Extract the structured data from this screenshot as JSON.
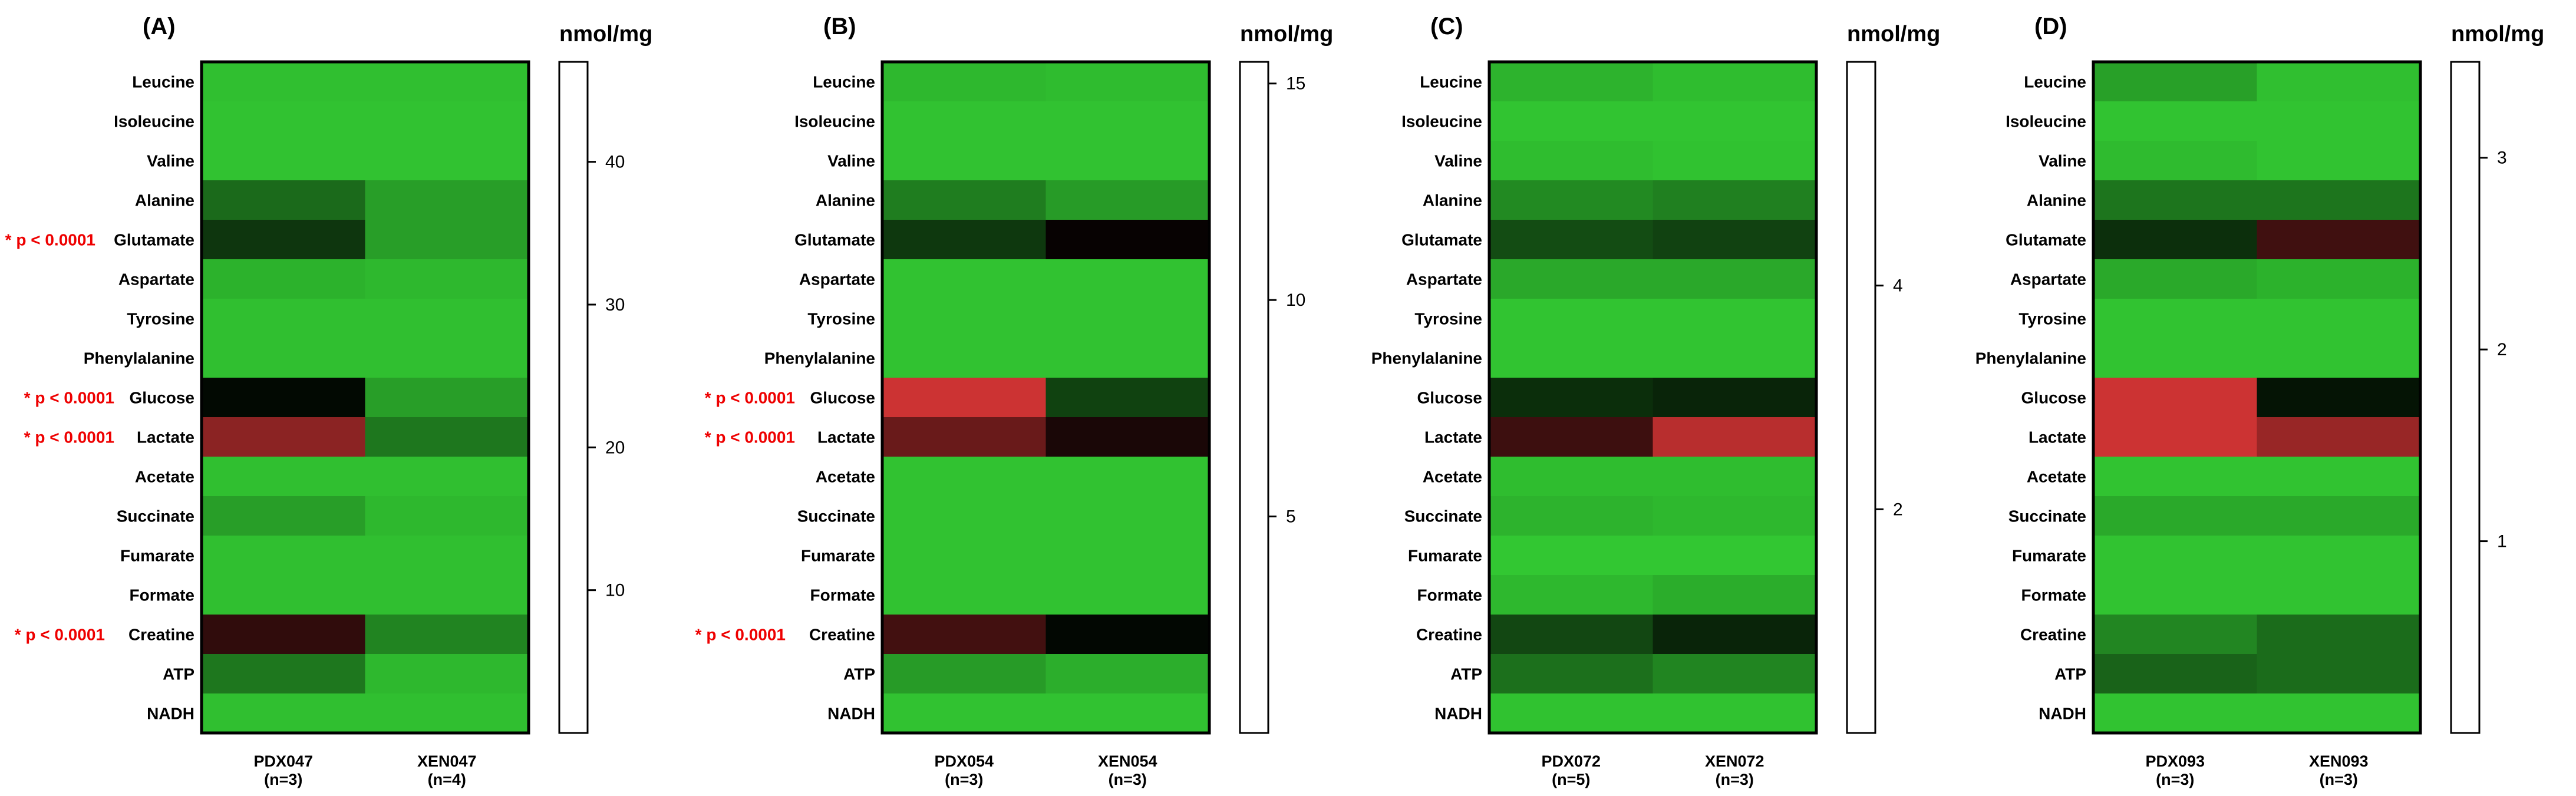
{
  "chart_data": [
    {
      "type": "heatmap",
      "panel_label": "(A)",
      "unit_label": "nmol/mg",
      "columns": [
        {
          "name": "PDX047",
          "n": "(n=3)"
        },
        {
          "name": "XEN047",
          "n": "(n=4)"
        }
      ],
      "rows": [
        "Leucine",
        "Isoleucine",
        "Valine",
        "Alanine",
        "Glutamate",
        "Aspartate",
        "Tyrosine",
        "Phenylalanine",
        "Glucose",
        "Lactate",
        "Acetate",
        "Succinate",
        "Fumarate",
        "Formate",
        "Creatine",
        "ATP",
        "NADH"
      ],
      "significance": [
        "",
        "",
        "",
        "",
        "* p < 0.0001",
        "",
        "",
        "",
        "* p < 0.0001",
        "* p < 0.0001",
        "",
        "",
        "",
        "",
        "* p < 0.0001",
        "",
        ""
      ],
      "values": [
        [
          2,
          2
        ],
        [
          1.5,
          1.5
        ],
        [
          1.5,
          1.5
        ],
        [
          15,
          7
        ],
        [
          23,
          7
        ],
        [
          4,
          3
        ],
        [
          2,
          2
        ],
        [
          2,
          2
        ],
        [
          30,
          7
        ],
        [
          42,
          13
        ],
        [
          2,
          2
        ],
        [
          7,
          3
        ],
        [
          2,
          2
        ],
        [
          2,
          2
        ],
        [
          35,
          11
        ],
        [
          13,
          3
        ],
        [
          2,
          2
        ]
      ],
      "colorbar": {
        "min": 0,
        "max": 47,
        "ticks": [
          10,
          20,
          30,
          40
        ]
      }
    },
    {
      "type": "heatmap",
      "panel_label": "(B)",
      "unit_label": "nmol/mg",
      "columns": [
        {
          "name": "PDX054",
          "n": "(n=3)"
        },
        {
          "name": "XEN054",
          "n": "(n=3)"
        }
      ],
      "rows": [
        "Leucine",
        "Isoleucine",
        "Valine",
        "Alanine",
        "Glutamate",
        "Aspartate",
        "Tyrosine",
        "Phenylalanine",
        "Glucose",
        "Lactate",
        "Acetate",
        "Succinate",
        "Fumarate",
        "Formate",
        "Creatine",
        "ATP",
        "NADH"
      ],
      "significance": [
        "",
        "",
        "",
        "",
        "",
        "",
        "",
        "",
        "* p < 0.0001",
        "* p < 0.0001",
        "",
        "",
        "",
        "",
        "* p < 0.0001",
        "",
        ""
      ],
      "values": [
        [
          1,
          0.8
        ],
        [
          0.5,
          0.5
        ],
        [
          0.5,
          0.5
        ],
        [
          4,
          2.5
        ],
        [
          7.5,
          10.5
        ],
        [
          0.5,
          0.5
        ],
        [
          0.5,
          0.5
        ],
        [
          0.5,
          0.5
        ],
        [
          15.5,
          7
        ],
        [
          13,
          11
        ],
        [
          0.5,
          0.5
        ],
        [
          0.5,
          0.5
        ],
        [
          0.5,
          0.5
        ],
        [
          0.5,
          0.5
        ],
        [
          12,
          10
        ],
        [
          2.5,
          1.5
        ],
        [
          0.5,
          0.5
        ]
      ],
      "colorbar": {
        "min": 0,
        "max": 15.5,
        "ticks": [
          5,
          10,
          15
        ]
      }
    },
    {
      "type": "heatmap",
      "panel_label": "(C)",
      "unit_label": "nmol/mg",
      "columns": [
        {
          "name": "PDX072",
          "n": "(n=5)"
        },
        {
          "name": "XEN072",
          "n": "(n=3)"
        }
      ],
      "rows": [
        "Leucine",
        "Isoleucine",
        "Valine",
        "Alanine",
        "Glutamate",
        "Aspartate",
        "Tyrosine",
        "Phenylalanine",
        "Glucose",
        "Lactate",
        "Acetate",
        "Succinate",
        "Fumarate",
        "Formate",
        "Creatine",
        "ATP",
        "NADH"
      ],
      "significance": [
        "",
        "",
        "",
        "",
        "",
        "",
        "",
        "",
        "",
        "",
        "",
        "",
        "",
        "",
        "",
        "",
        ""
      ],
      "values": [
        [
          0.5,
          0.3
        ],
        [
          0.15,
          0.15
        ],
        [
          0.3,
          0.2
        ],
        [
          1.3,
          1.5
        ],
        [
          2.5,
          2.7
        ],
        [
          0.7,
          0.7
        ],
        [
          0.15,
          0.15
        ],
        [
          0.15,
          0.15
        ],
        [
          3.1,
          3.3
        ],
        [
          4.6,
          5.8
        ],
        [
          0.3,
          0.3
        ],
        [
          0.5,
          0.4
        ],
        [
          0.1,
          0.1
        ],
        [
          0.4,
          0.6
        ],
        [
          2.6,
          3.3
        ],
        [
          1.8,
          1.4
        ],
        [
          0.2,
          0.2
        ]
      ],
      "colorbar": {
        "min": 0,
        "max": 6.0,
        "ticks": [
          2,
          4
        ]
      }
    },
    {
      "type": "heatmap",
      "panel_label": "(D)",
      "unit_label": "nmol/mg",
      "columns": [
        {
          "name": "PDX093",
          "n": "(n=3)"
        },
        {
          "name": "XEN093",
          "n": "(n=3)"
        }
      ],
      "rows": [
        "Leucine",
        "Isoleucine",
        "Valine",
        "Alanine",
        "Glutamate",
        "Aspartate",
        "Tyrosine",
        "Phenylalanine",
        "Glucose",
        "Lactate",
        "Acetate",
        "Succinate",
        "Fumarate",
        "Formate",
        "Creatine",
        "ATP",
        "NADH"
      ],
      "significance": [
        "",
        "",
        "",
        "",
        "",
        "",
        "",
        "",
        "",
        "",
        "",
        "",
        "",
        "",
        "",
        "",
        ""
      ],
      "values": [
        [
          0.5,
          0.15
        ],
        [
          0.1,
          0.1
        ],
        [
          0.2,
          0.1
        ],
        [
          1,
          1
        ],
        [
          1.8,
          2.7
        ],
        [
          0.4,
          0.3
        ],
        [
          0.1,
          0.1
        ],
        [
          0.1,
          0.1
        ],
        [
          3.5,
          2.1
        ],
        [
          3.5,
          3.2
        ],
        [
          0.1,
          0.1
        ],
        [
          0.4,
          0.4
        ],
        [
          0.1,
          0.1
        ],
        [
          0.1,
          0.1
        ],
        [
          0.8,
          1.1
        ],
        [
          1.2,
          1.1
        ],
        [
          0.1,
          0.1
        ]
      ],
      "colorbar": {
        "min": 0,
        "max": 3.5,
        "ticks": [
          1,
          2,
          3
        ]
      }
    }
  ],
  "colors": {
    "low": "#33cc33",
    "mid": "#000000",
    "high": "#cc3333",
    "significance": "#ee0000"
  }
}
